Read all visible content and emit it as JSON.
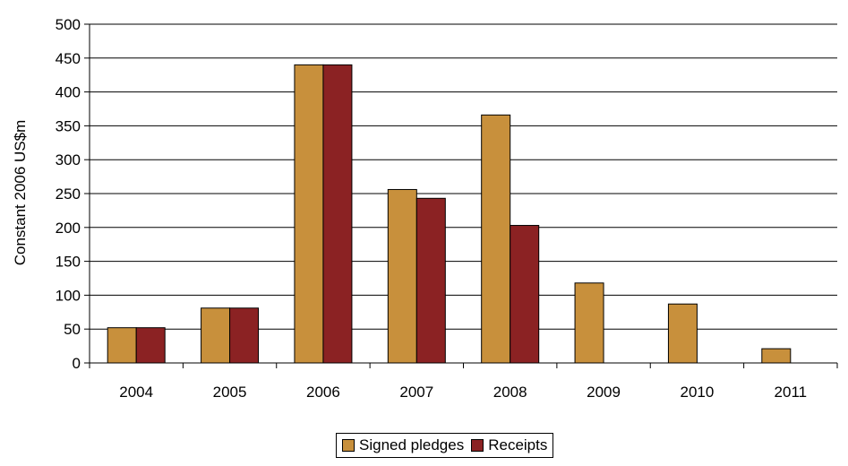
{
  "chart_data": {
    "type": "bar",
    "title": "",
    "xlabel": "",
    "ylabel": "Constant 2006 US$m",
    "ylim": [
      0,
      500
    ],
    "yticks": [
      0,
      50,
      100,
      150,
      200,
      250,
      300,
      350,
      400,
      450,
      500
    ],
    "grid": true,
    "legend_position": "bottom",
    "categories": [
      "2004",
      "2005",
      "2006",
      "2007",
      "2008",
      "2009",
      "2010",
      "2011"
    ],
    "series": [
      {
        "name": "Signed pledges",
        "color": "#C8903C",
        "values": [
          52,
          81,
          440,
          256,
          366,
          118,
          87,
          21
        ]
      },
      {
        "name": "Receipts",
        "color": "#8B2223",
        "values": [
          52,
          81,
          440,
          243,
          203,
          0,
          0,
          0
        ]
      }
    ]
  }
}
